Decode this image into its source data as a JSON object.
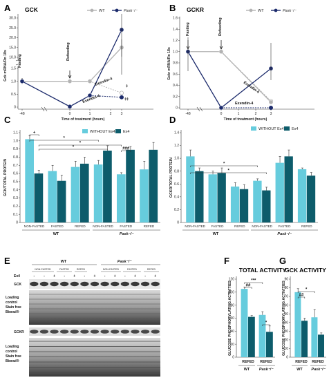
{
  "colors": {
    "wt": "#b3b3b3",
    "pask": "#1b2a6b",
    "without_ex4": "#66ccdd",
    "ex4": "#0d5c6b",
    "sig": "#000000"
  },
  "chart_data": [
    {
      "id": "A",
      "panel_label": "A",
      "type": "line",
      "title": "GCK",
      "ylabel": "Gck mRNA/Rn 18s",
      "xlabel": "Time of treatment (hours)",
      "x_ticks": [
        "-48",
        "0",
        "1",
        "2",
        "3"
      ],
      "y_ticks_lower": [
        "0",
        "0.5",
        "1.0",
        "1.5"
      ],
      "y_ticks_upper": [
        "10.0",
        "15.0",
        "20.0",
        "25.0",
        "30.0"
      ],
      "legend": [
        "WT",
        "Pask⁻/⁻"
      ],
      "annotations": [
        "Fasting",
        "Refeeding",
        "Exendin-4",
        "Exendin-4",
        "‡",
        "‡‡"
      ],
      "series": [
        {
          "name": "WT",
          "x": [
            "-48",
            "0",
            "1",
            "3"
          ],
          "y": [
            1.0,
            1.0,
            1.0,
            15.0
          ],
          "ex4_y": [
            0.55
          ]
        },
        {
          "name": "Pask⁻/⁻",
          "x": [
            "-48",
            "0",
            "1",
            "3"
          ],
          "y": [
            1.0,
            0.02,
            0.45,
            24.0
          ],
          "ex4_y": [
            0.38
          ]
        }
      ]
    },
    {
      "id": "B",
      "panel_label": "B",
      "type": "line",
      "title": "GCKR",
      "ylabel": "Gckr mRNA/Rn 18s",
      "xlabel": "Time of treatment (hours)",
      "x_ticks": [
        "-48",
        "0",
        "1",
        "2",
        "3"
      ],
      "y_ticks": [
        "0",
        "0.2",
        "0.4",
        "0.6",
        "0.8",
        "1.0",
        "1.2",
        "1.4",
        "1.6"
      ],
      "legend": [
        "WT",
        "Pask⁻/⁻"
      ],
      "annotations": [
        "Fasting",
        "Refeeding",
        "Exendin-4",
        "Exendin-4"
      ],
      "series": [
        {
          "name": "WT",
          "x": [
            "-48",
            "0",
            "3"
          ],
          "y": [
            1.0,
            1.0,
            0.1
          ],
          "ex4_y": [
            0.12
          ]
        },
        {
          "name": "Pask⁻/⁻",
          "x": [
            "-48",
            "0",
            "3"
          ],
          "y": [
            1.0,
            0.0,
            0.7
          ],
          "ex4_y": [
            0.0
          ]
        }
      ]
    },
    {
      "id": "C",
      "panel_label": "C",
      "type": "bar",
      "ylabel": "GCK/TOTAL PROTEIN",
      "y_ticks": [
        "0",
        "0.1",
        "0.2",
        "0.3",
        "0.4",
        "0.5",
        "0.6",
        "0.7",
        "0.8",
        "0.9",
        "1.0",
        "1.1"
      ],
      "ylim": [
        0,
        1.1
      ],
      "categories": [
        "NON-FASTED",
        "FASTED",
        "REFED",
        "NON-FASTED",
        "FASTED",
        "REFED"
      ],
      "groups": [
        "WT",
        "Pask⁻/⁻"
      ],
      "series": [
        {
          "name": "WITHOUT Ex4",
          "values": [
            1.02,
            0.63,
            0.68,
            0.71,
            0.59,
            0.65
          ],
          "errors": [
            0.04,
            0.07,
            0.07,
            0.05,
            0.02,
            0.1
          ]
        },
        {
          "name": "Ex4",
          "values": [
            0.6,
            0.51,
            0.72,
            0.88,
            0.89,
            0.89
          ],
          "errors": [
            0.04,
            0.07,
            0.08,
            0.06,
            0.04,
            0.09
          ]
        }
      ],
      "significance": [
        "+",
        "*",
        "*",
        "*",
        "###"
      ]
    },
    {
      "id": "D",
      "panel_label": "D",
      "type": "bar",
      "ylabel": "GCKR/TOTAL PROTEIN",
      "y_ticks": [
        "0",
        "0.2",
        "0.4",
        "0.6",
        "0.8",
        "1.0",
        "1.2",
        "1.4"
      ],
      "ylim": [
        0,
        1.4
      ],
      "categories": [
        "NON-FASTED",
        "FASTED",
        "REFED",
        "NON-FASTED",
        "FASTED",
        "REFED"
      ],
      "groups": [
        "WT",
        "Pask⁻/⁻"
      ],
      "series": [
        {
          "name": "WITHOUT Ex4",
          "values": [
            1.03,
            0.75,
            0.56,
            0.65,
            0.93,
            0.83
          ],
          "errors": [
            0.1,
            0.05,
            0.06,
            0.03,
            0.1,
            0.02
          ]
        },
        {
          "name": "Ex4",
          "values": [
            0.8,
            0.77,
            0.52,
            0.5,
            1.03,
            0.73
          ],
          "errors": [
            0.05,
            0.08,
            0.07,
            0.05,
            0.1,
            0.05
          ]
        }
      ],
      "significance": [
        "*",
        "*"
      ]
    },
    {
      "id": "F",
      "panel_label": "F",
      "type": "bar",
      "title": "TOTAL ACTIVITY",
      "ylabel": "GLUCOSE PHOSPHORYLATING ACTIVITIES",
      "y_ticks": [
        "0",
        "20",
        "40",
        "60",
        "80",
        "100",
        "120"
      ],
      "ylim": [
        0,
        120
      ],
      "categories": [
        "REFED",
        "REFED"
      ],
      "groups": [
        "WT",
        "Pask⁻/⁻"
      ],
      "series": [
        {
          "name": "WITHOUT Ex4",
          "values": [
            105,
            65
          ],
          "errors": [
            3,
            5
          ]
        },
        {
          "name": "Ex4",
          "values": [
            62,
            39
          ],
          "errors": [
            2,
            9
          ]
        }
      ],
      "significance": [
        "##",
        "***",
        "*"
      ]
    },
    {
      "id": "G",
      "panel_label": "G",
      "type": "bar",
      "title": "GCK ACTIVITY",
      "ylabel": "GLUCOSE PHOSPHORYLATING ACTIVITIES",
      "y_ticks": [
        "0",
        "10",
        "20",
        "30",
        "40",
        "50",
        "60",
        "70",
        "80",
        "90"
      ],
      "ylim": [
        0,
        90
      ],
      "categories": [
        "REFED",
        "REFED"
      ],
      "groups": [
        "WT",
        "Pask⁻/⁻"
      ],
      "series": [
        {
          "name": "WITHOUT Ex4",
          "values": [
            75,
            46
          ],
          "errors": [
            4,
            9
          ]
        },
        {
          "name": "Ex4",
          "values": [
            42,
            26
          ],
          "errors": [
            3,
            2
          ]
        }
      ],
      "significance": [
        "##",
        "*"
      ]
    }
  ],
  "blot": {
    "panel_label": "E",
    "group_wt": "WT",
    "group_pask": "Pask⁻/⁻",
    "conditions": [
      "NON-FASTED",
      "FASTED",
      "REFED",
      "NON-FASTED",
      "FASTED",
      "REFED"
    ],
    "ex4_label": "Ex4",
    "lane_signs": [
      "-",
      "-",
      "+",
      "-",
      "+",
      "-",
      "+",
      "-",
      "+",
      "-",
      "+",
      "-",
      "+"
    ],
    "row_gck": "GCK",
    "row_loading_1": [
      "Loading",
      "control",
      "Stain free",
      "Biorad®"
    ],
    "row_gckr": "GCKR",
    "row_loading_2": [
      "Loading",
      "control",
      "Stain free",
      "Biorad®"
    ]
  }
}
